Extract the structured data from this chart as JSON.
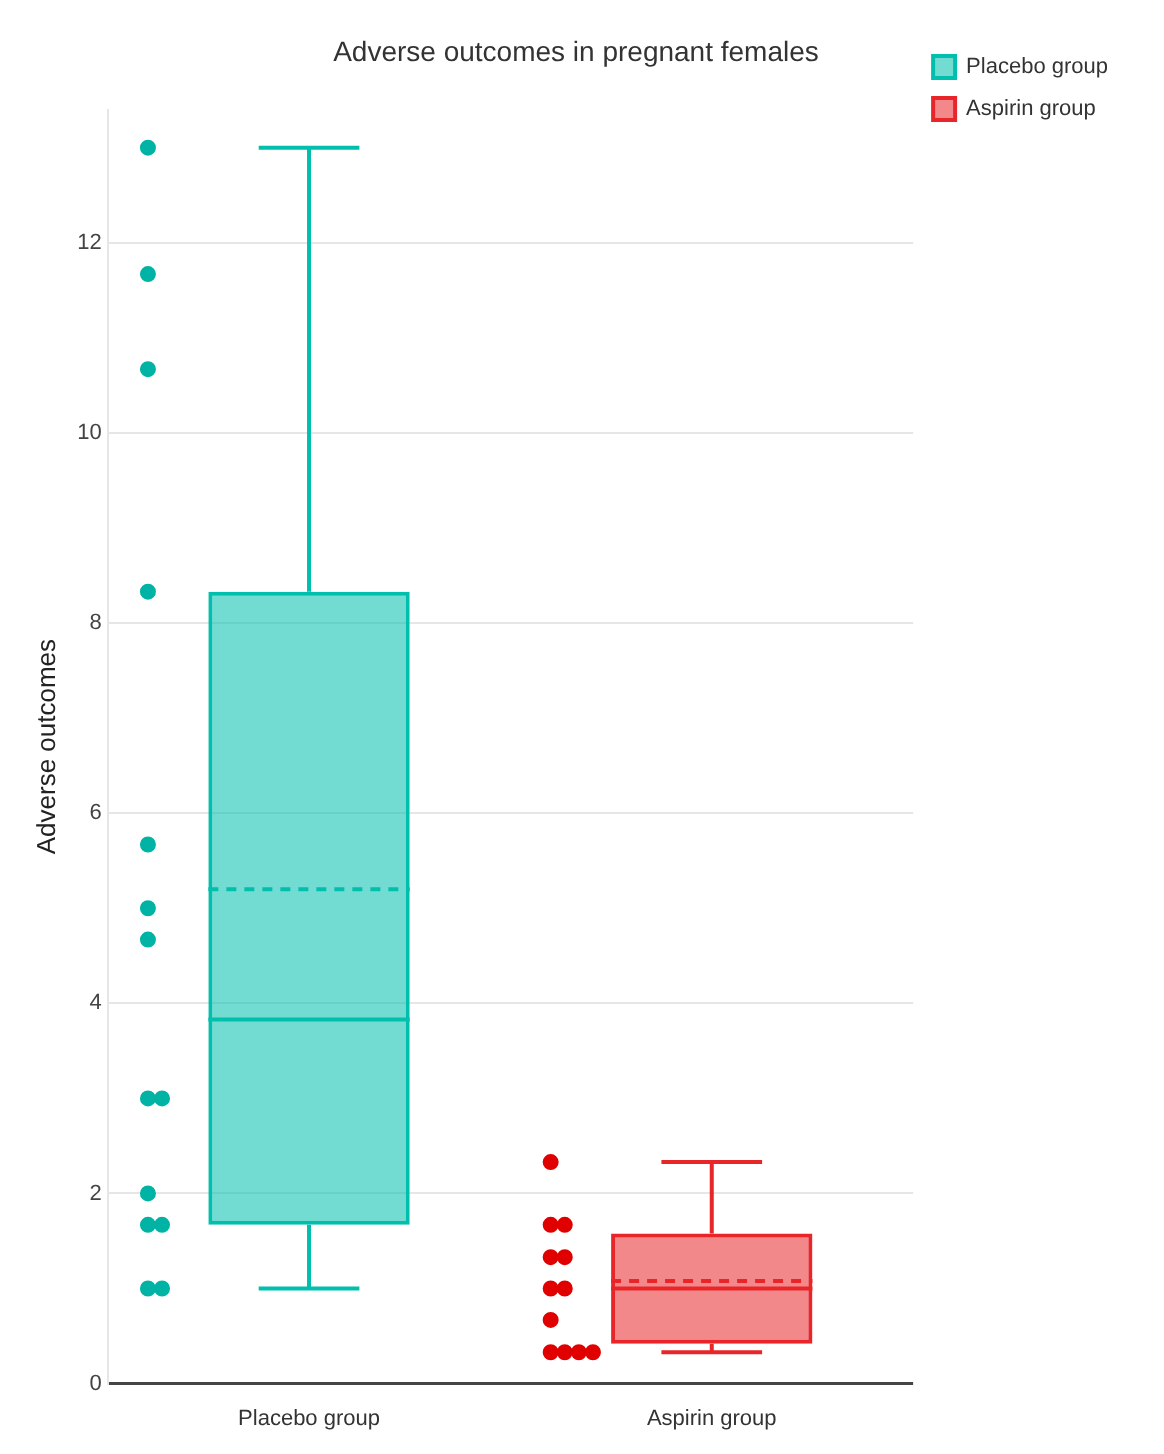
{
  "chart_data": {
    "type": "box",
    "title": "Adverse outcomes in pregnant females",
    "ylabel": "Adverse outcomes",
    "categories": [
      "Placebo group",
      "Aspirin group"
    ],
    "ylim": [
      0,
      13.4
    ],
    "yticks": [
      0,
      2,
      4,
      6,
      8,
      10,
      12
    ],
    "grid": "y",
    "legend": "top right",
    "line_style": "dashed",
    "series": [
      {
        "name": "Placebo group",
        "color": "#00bfad",
        "boxes": [
          {
            "low": 1,
            "q1": 1.67,
            "median": 3.83,
            "q3": 8.33,
            "high": 13,
            "mean": 5.2
          },
          null
        ]
      },
      {
        "name": "Aspirin group",
        "color": "#e8262a",
        "boxes": [
          null,
          {
            "low": 0.33,
            "q1": 0.42,
            "median": 1,
            "q3": 1.58,
            "high": 2.33,
            "mean": 1.08
          }
        ]
      },
      {
        "type": "scatter",
        "color": "#00b3a4",
        "marker": "circle",
        "x": [
          "Placebo group",
          "Placebo group",
          "Placebo group",
          "Placebo group",
          "Placebo group",
          "Placebo group",
          "Placebo group",
          "Placebo group",
          "Placebo group",
          "Placebo group",
          "Placebo group",
          "Placebo group",
          "Placebo group",
          "Placebo group"
        ],
        "values": [
          13,
          11.67,
          10.67,
          8.33,
          5.67,
          5,
          4.67,
          3,
          3,
          2,
          1.67,
          1.67,
          1,
          1
        ]
      },
      {
        "type": "scatter",
        "color": "#e00000",
        "marker": "circle",
        "x": [
          "Aspirin group",
          "Aspirin group",
          "Aspirin group",
          "Aspirin group",
          "Aspirin group",
          "Aspirin group",
          "Aspirin group",
          "Aspirin group",
          "Aspirin group",
          "Aspirin group",
          "Aspirin group",
          "Aspirin group"
        ],
        "values": [
          2.33,
          1.67,
          1.67,
          1.33,
          1.33,
          1,
          1,
          0.67,
          0.33,
          0.33,
          0.33,
          0.33
        ]
      }
    ]
  }
}
